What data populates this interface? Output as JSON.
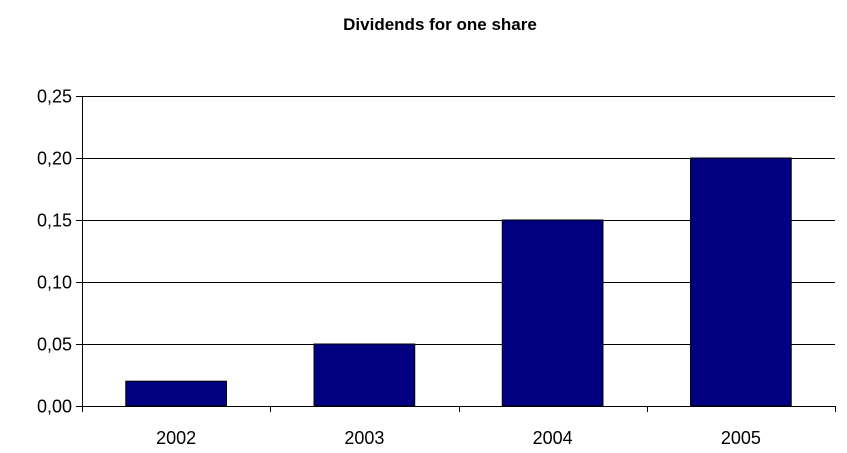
{
  "chart_data": {
    "type": "bar",
    "title": "Dividends for one share",
    "xlabel": "",
    "ylabel": "",
    "categories": [
      "2002",
      "2003",
      "2004",
      "2005"
    ],
    "values": [
      0.02,
      0.05,
      0.15,
      0.2
    ],
    "ylim": [
      0,
      0.25
    ],
    "yticks": [
      "0,00",
      "0,05",
      "0,10",
      "0,15",
      "0,20",
      "0,25"
    ],
    "grid": true,
    "legend": "none",
    "bar_color": "#000080"
  }
}
